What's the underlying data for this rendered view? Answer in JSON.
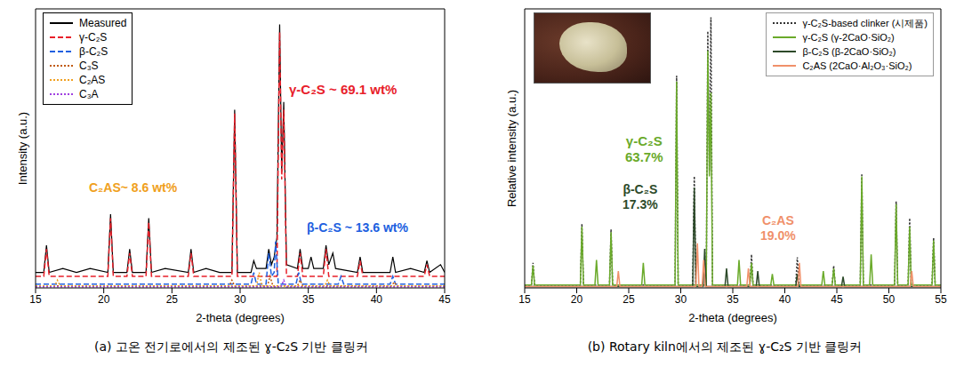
{
  "chart_data": [
    {
      "type": "line",
      "caption": "(a) 고온 전기로에서의 제조된 ɣ-C₂S 기반 클링커",
      "x_label": "2-theta (degrees)",
      "y_label": "Intensity (a.u.)",
      "xlim": [
        15,
        45
      ],
      "xticks": [
        15,
        20,
        25,
        30,
        35,
        40,
        45
      ],
      "ylim": [
        0,
        72
      ],
      "tick_labels": "x",
      "legend": "upper left",
      "series": [
        {
          "name": "Measured",
          "color": "#000000",
          "line_style": "solid",
          "x": [
            15,
            15.6,
            15.8,
            16.0,
            17,
            18,
            19,
            20.3,
            20.5,
            20.7,
            21.7,
            21.9,
            22.1,
            23.1,
            23.3,
            23.5,
            24.5,
            26.2,
            26.4,
            26.6,
            27.5,
            28.5,
            29.4,
            29.6,
            29.8,
            30.8,
            31.0,
            31.2,
            31.9,
            32.1,
            32.3,
            32.5,
            32.7,
            32.9,
            33.05,
            33.2,
            33.4,
            34.2,
            34.4,
            34.6,
            35.0,
            35.2,
            35.4,
            36.1,
            36.3,
            36.5,
            36.8,
            37.0,
            38.6,
            38.8,
            39.0,
            41.0,
            41.2,
            41.4,
            42.5,
            43.5,
            43.7,
            43.9,
            44.7,
            45
          ],
          "values": [
            4,
            4,
            11,
            4,
            5,
            4,
            5,
            4,
            19,
            4,
            4,
            10,
            4,
            4,
            18,
            4,
            5,
            4,
            10,
            4,
            5,
            4,
            4,
            46,
            4,
            4,
            7,
            5,
            5,
            10,
            6,
            8,
            13,
            68,
            30,
            48,
            6,
            5,
            10,
            5,
            5,
            8,
            5,
            5,
            11,
            6,
            9,
            5,
            4,
            8,
            4,
            4,
            8,
            4,
            5,
            4,
            7,
            4,
            6,
            4
          ]
        },
        {
          "name": "γ-C₂S",
          "color": "#e8202a",
          "line_style": "dashed",
          "x": [
            15,
            15.6,
            15.8,
            16.0,
            20.3,
            20.5,
            20.7,
            21.7,
            21.9,
            22.1,
            23.1,
            23.3,
            23.5,
            26.2,
            26.4,
            26.6,
            29.4,
            29.6,
            29.8,
            32.7,
            32.9,
            33.05,
            33.2,
            33.4,
            34.2,
            34.4,
            34.6,
            36.1,
            36.3,
            36.5,
            38.6,
            38.8,
            39.0,
            43.5,
            43.7,
            43.9,
            45
          ],
          "values": [
            3,
            3,
            10,
            3,
            3,
            18,
            3,
            3,
            9,
            3,
            3,
            17,
            3,
            3,
            9,
            3,
            3,
            45,
            3,
            3,
            66,
            28,
            46,
            3,
            3,
            9,
            3,
            3,
            10,
            3,
            3,
            7,
            3,
            3,
            6,
            3,
            3
          ]
        },
        {
          "name": "β-C₂S",
          "color": "#2060e0",
          "line_style": "dashed",
          "x": [
            15,
            30.8,
            31.0,
            31.2,
            31.9,
            32.1,
            32.3,
            32.5,
            32.6,
            32.8,
            34.1,
            34.3,
            34.5,
            37.2,
            37.4,
            37.6,
            41.0,
            41.2,
            41.4,
            45
          ],
          "values": [
            1,
            1,
            4,
            1,
            1,
            9,
            3,
            4,
            12,
            1,
            1,
            4,
            1,
            1,
            3,
            1,
            1,
            3,
            1,
            1
          ]
        },
        {
          "name": "C₃S",
          "color": "#c05a10",
          "line_style": "dotted",
          "x": [
            15,
            29.2,
            29.4,
            29.6,
            32.0,
            32.2,
            32.4,
            34.2,
            34.4,
            34.6,
            41.1,
            41.3,
            41.5,
            45
          ],
          "values": [
            0.5,
            0.5,
            2,
            0.5,
            0.5,
            3,
            0.5,
            0.5,
            2,
            0.5,
            0.5,
            1.5,
            0.5,
            0.5
          ]
        },
        {
          "name": "C₂AS",
          "color": "#f0a020",
          "line_style": "dotted",
          "x": [
            15,
            16.4,
            16.6,
            16.8,
            31.2,
            31.4,
            31.6,
            36.2,
            36.4,
            36.6,
            45
          ],
          "values": [
            0.5,
            0.5,
            2,
            0.5,
            0.5,
            4,
            0.5,
            0.5,
            2,
            0.5,
            0.5
          ]
        },
        {
          "name": "C₃A",
          "color": "#a040e0",
          "line_style": "dotted",
          "x": [
            15,
            33.0,
            33.2,
            33.4,
            45
          ],
          "values": [
            0.3,
            0.3,
            2,
            0.3,
            0.3
          ]
        }
      ],
      "annotations": [
        {
          "lines": [
            "γ-C₂S ~ 69.1 wt%"
          ],
          "color": "#e8202a"
        },
        {
          "lines": [
            "C₂AS~ 8.6 wt%"
          ],
          "color": "#f0a020"
        },
        {
          "lines": [
            "β-C₂S ~ 13.6 wt%"
          ],
          "color": "#2060e0"
        }
      ]
    },
    {
      "type": "line",
      "caption": "(b) Rotary kiln에서의 제조된 ɣ-C₂S 기반 클링커",
      "x_label": "2-theta (degrees)",
      "y_label": "Relative intensity (a.u.)",
      "xlim": [
        15,
        55
      ],
      "xticks": [
        15,
        20,
        25,
        30,
        35,
        40,
        45,
        50,
        55
      ],
      "ylim": [
        0,
        100
      ],
      "tick_labels": "x",
      "legend": "upper right",
      "series": [
        {
          "name": "γ-C₂S-based clinker (시제품)",
          "color": "#333333",
          "line_style": "dotted",
          "x": [
            15,
            15.65,
            15.8,
            15.95,
            20.35,
            20.5,
            20.65,
            23.15,
            23.3,
            23.45,
            29.45,
            29.6,
            29.75,
            31.15,
            31.3,
            31.45,
            32.45,
            32.6,
            32.75,
            32.9,
            33.05,
            36.65,
            36.8,
            36.95,
            41.05,
            41.2,
            41.35,
            44.55,
            44.7,
            44.85,
            47.25,
            47.4,
            47.55,
            50.55,
            50.7,
            50.85,
            51.85,
            52.0,
            52.15,
            54.15,
            54.3,
            54.45,
            55
          ],
          "values": [
            1,
            1,
            9,
            1,
            1,
            23,
            1,
            1,
            21,
            1,
            1,
            76,
            1,
            1,
            40,
            1,
            1,
            92,
            42,
            97,
            1,
            1,
            12,
            1,
            1,
            11,
            1,
            1,
            8,
            1,
            1,
            41,
            1,
            1,
            31,
            1,
            1,
            25,
            1,
            1,
            18,
            1,
            1
          ]
        },
        {
          "name": "γ-C₂S (γ-2CaO·SiO₂)",
          "color": "#6aaa2a",
          "line_style": "solid",
          "x": [
            15,
            15.65,
            15.8,
            15.95,
            20.35,
            20.5,
            20.65,
            21.75,
            21.9,
            22.05,
            23.15,
            23.3,
            23.45,
            26.25,
            26.4,
            26.55,
            29.45,
            29.6,
            29.75,
            32.45,
            32.6,
            32.75,
            32.9,
            33.05,
            35.45,
            35.6,
            35.75,
            36.65,
            36.8,
            36.95,
            38.65,
            38.8,
            38.95,
            43.55,
            43.7,
            43.85,
            44.55,
            44.7,
            44.85,
            47.25,
            47.4,
            47.55,
            48.15,
            48.3,
            48.45,
            50.55,
            50.7,
            50.85,
            51.85,
            52.0,
            52.15,
            54.15,
            54.3,
            54.45,
            55
          ],
          "values": [
            1,
            1,
            8,
            1,
            1,
            22,
            1,
            1,
            10,
            1,
            1,
            20,
            1,
            1,
            9,
            1,
            1,
            74,
            1,
            1,
            85,
            40,
            70,
            1,
            1,
            10,
            1,
            1,
            9,
            1,
            1,
            5,
            1,
            1,
            6,
            1,
            1,
            7,
            1,
            1,
            40,
            1,
            1,
            12,
            1,
            1,
            30,
            1,
            1,
            22,
            1,
            1,
            17,
            1,
            1
          ]
        },
        {
          "name": "β-C₂S (β-2CaO·SiO₂)",
          "color": "#2d4a2a",
          "line_style": "solid",
          "x": [
            15,
            31.15,
            31.3,
            31.45,
            32.15,
            32.3,
            32.45,
            34.25,
            34.4,
            34.55,
            37.25,
            37.4,
            37.55,
            41.05,
            41.2,
            41.35,
            45.45,
            45.6,
            45.75,
            55
          ],
          "values": [
            0.5,
            0.5,
            36,
            0.5,
            0.5,
            14,
            0.5,
            0.5,
            7,
            0.5,
            0.5,
            6,
            0.5,
            0.5,
            5,
            0.5,
            0.5,
            4,
            0.5,
            0.5
          ]
        },
        {
          "name": "C₂AS (2CaO·Al₂O₃·SiO₂)",
          "color": "#f0906a",
          "line_style": "solid",
          "x": [
            15,
            23.85,
            24.0,
            24.15,
            31.45,
            31.6,
            31.75,
            32.05,
            32.2,
            32.35,
            36.35,
            36.5,
            36.65,
            41.25,
            41.4,
            41.55,
            52.05,
            52.2,
            52.35,
            55
          ],
          "values": [
            0.5,
            0.5,
            6,
            0.5,
            0.5,
            16,
            0.5,
            0.5,
            10,
            0.5,
            0.5,
            7,
            0.5,
            0.5,
            9,
            0.5,
            0.5,
            6,
            0.5,
            0.5
          ]
        }
      ],
      "annotations": [
        {
          "lines": [
            "γ-C₂S",
            "63.7%"
          ],
          "color": "#6aaa2a"
        },
        {
          "lines": [
            "β-C₂S",
            "17.3%"
          ],
          "color": "#2d4a2a"
        },
        {
          "lines": [
            "C₂AS",
            "19.0%"
          ],
          "color": "#f0906a"
        }
      ]
    }
  ]
}
